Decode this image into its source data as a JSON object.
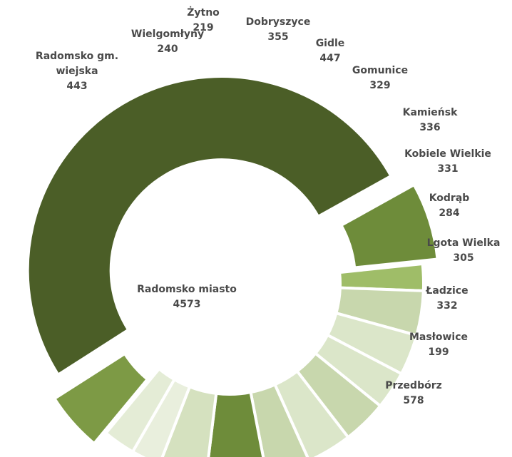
{
  "chart_data": {
    "type": "pie",
    "variant": "donut",
    "categories": [
      "Radomsko miasto",
      "Przedbórz",
      "Masłowice",
      "Ładzice",
      "Lgota Wielka",
      "Kodrąb",
      "Kobiele Wielkie",
      "Kamieńsk",
      "Gomunice",
      "Gidle",
      "Dobryszyce",
      "Żytno",
      "Wielgomłyny",
      "Radomsko gm. wiejska"
    ],
    "values": [
      4573,
      578,
      199,
      332,
      305,
      284,
      331,
      336,
      329,
      447,
      355,
      219,
      240,
      443
    ],
    "colors": [
      "#4b5e27",
      "#6e8c3a",
      "#9fbd68",
      "#c8d7ad",
      "#dbe6c9",
      "#dbe6c9",
      "#c8d7ad",
      "#dbe6c9",
      "#c8d7ad",
      "#6e8c3a",
      "#d5e1bf",
      "#e9efdd",
      "#e4ecd6",
      "#7d9a45"
    ],
    "label_lines": [
      [
        "Radomsko miasto",
        "4573"
      ],
      [
        "Przedbórz",
        "578"
      ],
      [
        "Masłowice",
        "199"
      ],
      [
        "Ładzice",
        "332"
      ],
      [
        "Lgota Wielka",
        "305"
      ],
      [
        "Kodrąb",
        "284"
      ],
      [
        "Kobiele Wielkie",
        "331"
      ],
      [
        "Kamieńsk",
        "336"
      ],
      [
        "Gomunice",
        "329"
      ],
      [
        "Gidle",
        "447"
      ],
      [
        "Dobryszyce",
        "355"
      ],
      [
        "Żytno",
        "219"
      ],
      [
        "Wielgomłyny",
        "240"
      ],
      [
        "Radomsko gm.",
        "wiejska",
        "443"
      ]
    ],
    "exploded": [
      "Radomsko miasto",
      "Przedbórz",
      "Radomsko gm. wiejska"
    ],
    "title": "",
    "legend": "none"
  }
}
